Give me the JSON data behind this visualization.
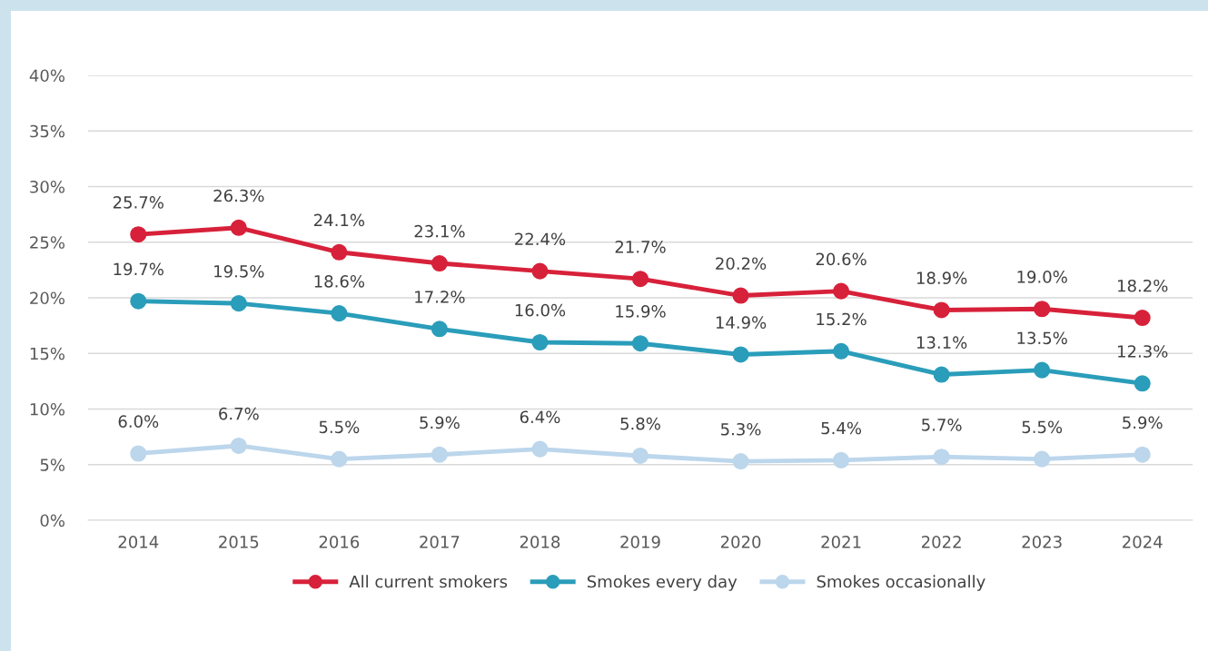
{
  "chart_data": {
    "type": "line",
    "categories": [
      "2014",
      "2015",
      "2016",
      "2017",
      "2018",
      "2019",
      "2020",
      "2021",
      "2022",
      "2023",
      "2024"
    ],
    "series": [
      {
        "name": "All current smokers",
        "color": "#d7213a",
        "values": [
          25.7,
          26.3,
          24.1,
          23.1,
          22.4,
          21.7,
          20.2,
          20.6,
          18.9,
          19.0,
          18.2
        ],
        "value_labels": [
          "25.7%",
          "26.3%",
          "24.1%",
          "23.1%",
          "22.4%",
          "21.7%",
          "20.2%",
          "20.6%",
          "18.9%",
          "19.0%",
          "18.2%"
        ]
      },
      {
        "name": "Smokes every day",
        "color": "#2a9dba",
        "values": [
          19.7,
          19.5,
          18.6,
          17.2,
          16.0,
          15.9,
          14.9,
          15.2,
          13.1,
          13.5,
          12.3
        ],
        "value_labels": [
          "19.7%",
          "19.5%",
          "18.6%",
          "17.2%",
          "16.0%",
          "15.9%",
          "14.9%",
          "15.2%",
          "13.1%",
          "13.5%",
          "12.3%"
        ]
      },
      {
        "name": "Smokes occasionally",
        "color": "#bcd6ec",
        "values": [
          6.0,
          6.7,
          5.5,
          5.9,
          6.4,
          5.8,
          5.3,
          5.4,
          5.7,
          5.5,
          5.9
        ],
        "value_labels": [
          "6.0%",
          "6.7%",
          "5.5%",
          "5.9%",
          "6.4%",
          "5.8%",
          "5.3%",
          "5.4%",
          "5.7%",
          "5.5%",
          "5.9%"
        ]
      }
    ],
    "ylim": [
      0,
      40
    ],
    "yticks": [
      {
        "value": 0,
        "label": "0%"
      },
      {
        "value": 5,
        "label": "5%"
      },
      {
        "value": 10,
        "label": "10%"
      },
      {
        "value": 15,
        "label": "15%"
      },
      {
        "value": 20,
        "label": "20%"
      },
      {
        "value": 25,
        "label": "25%"
      },
      {
        "value": 30,
        "label": "30%"
      },
      {
        "value": 35,
        "label": "35%"
      },
      {
        "value": 40,
        "label": "40%"
      }
    ],
    "grid": "y",
    "legend": "bottom",
    "marker": "circle",
    "line_style": "solid"
  }
}
